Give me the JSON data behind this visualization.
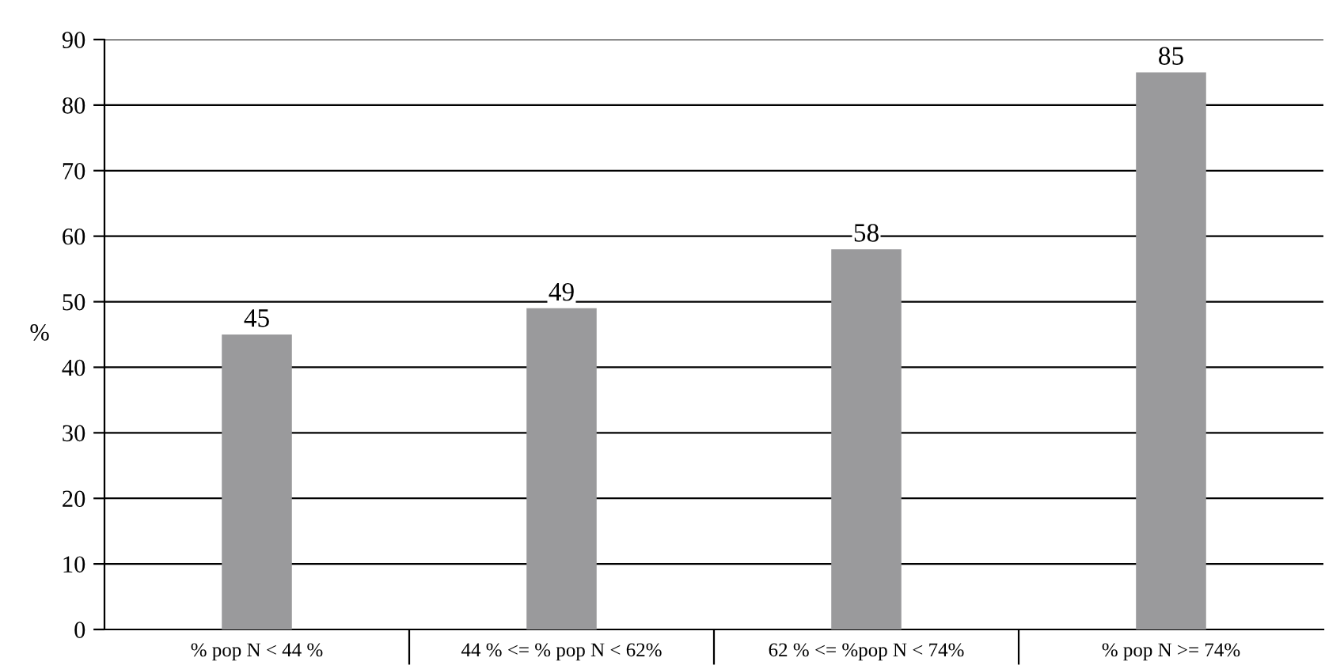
{
  "chart_data": {
    "type": "bar",
    "ylabel": "%",
    "categories": [
      "% pop N < 44 %",
      "44 % <= % pop N < 62%",
      "62 % <= %pop N < 74%",
      "% pop N >= 74%"
    ],
    "values": [
      45,
      49,
      58,
      85
    ],
    "color": "#9a9a9c",
    "ylim": [
      0,
      90
    ],
    "yticks": [
      0,
      10,
      20,
      30,
      40,
      50,
      60,
      70,
      80,
      90
    ],
    "grid": "y",
    "data_labels": true,
    "legend": false
  }
}
